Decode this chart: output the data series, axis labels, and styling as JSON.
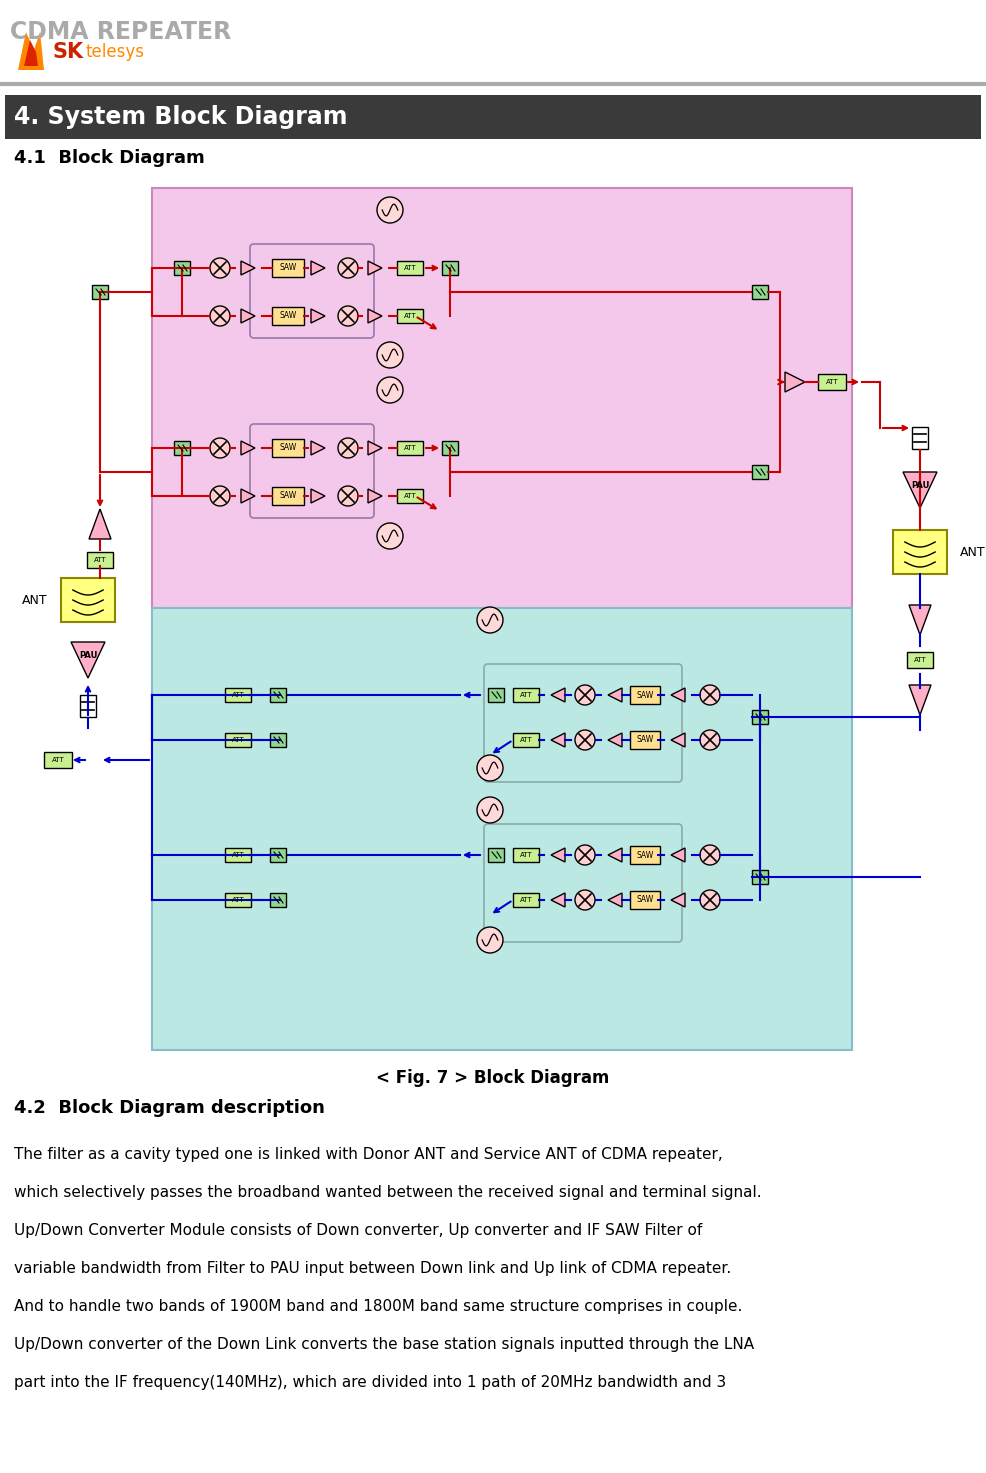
{
  "page_bg": "#ffffff",
  "header_title": "CDMA REPEATER",
  "header_title_color": "#999999",
  "section_title": "4. System Block Diagram",
  "section_bg": "#444444",
  "subsection1": "4.1  Block Diagram",
  "fig_caption": "< Fig. 7 > Block Diagram",
  "subsection2": "4.2  Block Diagram description",
  "body_text": [
    "The filter as a cavity typed one is linked with Donor ANT and Service ANT of CDMA repeater,",
    "which selectively passes the broadband wanted between the received signal and terminal signal.",
    "Up/Down Converter Module consists of Down converter, Up converter and IF SAW Filter of",
    "variable bandwidth from Filter to PAU input between Down link and Up link of CDMA repeater.",
    "And to handle two bands of 1900M band and 1800M band same structure comprises in couple.",
    "Up/Down converter of the Down Link converts the base station signals inputted through the LNA",
    "part into the IF frequency(140MHz), which are divided into 1 path of 20MHz bandwidth and 3"
  ],
  "uplink_bg": "#f2c8e8",
  "downlink_bg": "#c0e8e4",
  "saw_color": "#ffe090",
  "att_color": "#c8f090",
  "switch_color": "#90d890",
  "amp_color": "#ffb0c8",
  "ant_color": "#ffff80",
  "red": "#cc0000",
  "blue": "#0000cc",
  "osc_color": "#ffd0d0",
  "inner_box_ec_up": "#aa88aa",
  "inner_box_ec_dn": "#88aaaa"
}
